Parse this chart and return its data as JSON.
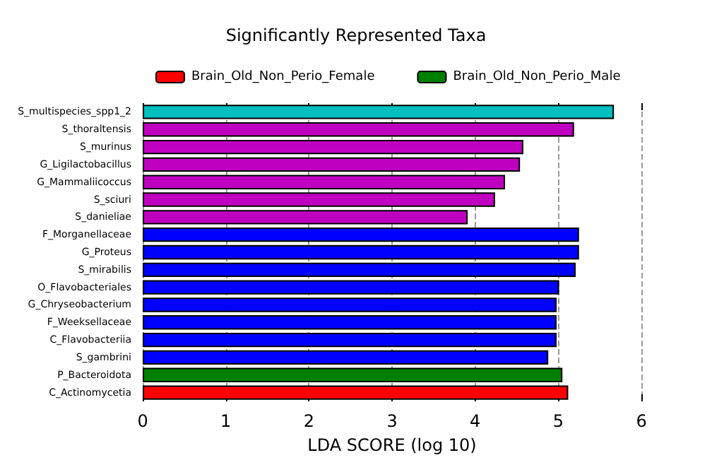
{
  "chart_data": {
    "type": "bar",
    "title": "Significantly Represented Taxa",
    "xlabel": "LDA SCORE (log 10)",
    "orientation": "horizontal",
    "stacked": true,
    "categories": [
      "S_multispecies_spp1_2",
      "S_thoraltensis",
      "S_murinus",
      "G_Ligilactobacillus",
      "G_Mammaliicoccus",
      "S_sciuri",
      "S_danieliae",
      "F_Morganellaceae",
      "G_Proteus",
      "S_mirabilis",
      "O_Flavobacteriales",
      "G_Chryseobacterium",
      "F_Weeksellaceae",
      "C_Flavobacteriia",
      "S_gambrini",
      "P_Bacteroidota",
      "C_Actinomycetia"
    ],
    "series": [
      {
        "name": "Brain_Old_Non_Perio_Female",
        "color": "#ff0000",
        "values": [
          null,
          null,
          null,
          null,
          null,
          null,
          null,
          null,
          null,
          null,
          null,
          null,
          null,
          null,
          null,
          null,
          5.12
        ]
      },
      {
        "name": "Brain_Old_Non_Perio_Male",
        "color": "#008000",
        "values": [
          null,
          null,
          null,
          null,
          null,
          null,
          null,
          null,
          null,
          null,
          null,
          null,
          null,
          null,
          null,
          5.05,
          null
        ]
      },
      {
        "color": "#0000ff",
        "values": [
          null,
          null,
          null,
          null,
          null,
          null,
          null,
          5.25,
          5.25,
          5.21,
          5.01,
          4.98,
          4.98,
          4.98,
          4.88,
          null,
          null
        ]
      },
      {
        "color": "#c000c0",
        "values": [
          null,
          5.19,
          4.58,
          4.54,
          4.36,
          4.24,
          3.91,
          null,
          null,
          null,
          null,
          null,
          null,
          null,
          null,
          null,
          null
        ]
      },
      {
        "color": "#00bfbf",
        "values": [
          5.67,
          null,
          null,
          null,
          null,
          null,
          null,
          null,
          null,
          null,
          null,
          null,
          null,
          null,
          null,
          null,
          null
        ]
      }
    ],
    "xlim": [
      0,
      6
    ],
    "xticks": [
      0,
      1,
      2,
      3,
      4,
      5,
      6
    ],
    "grid": "x",
    "legend": "top"
  }
}
